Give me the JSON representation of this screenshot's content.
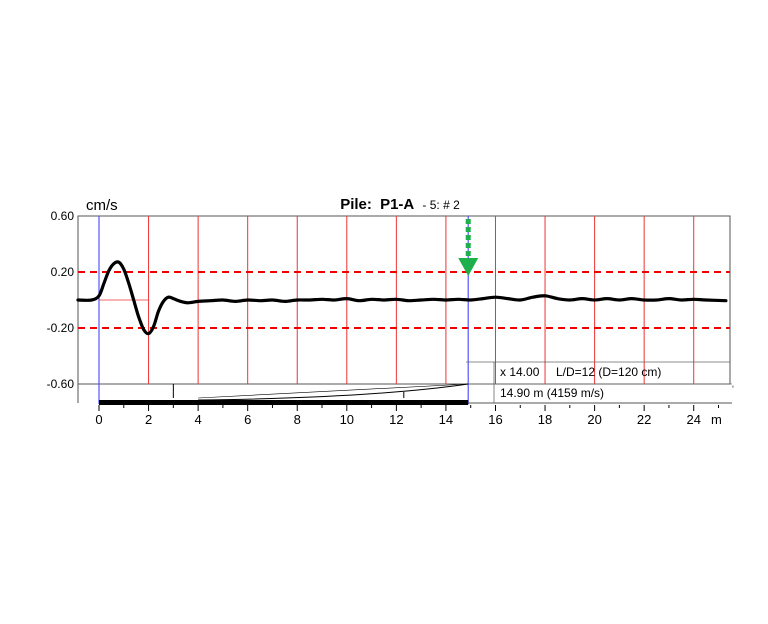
{
  "chart_data": {
    "type": "line",
    "title": {
      "prefix": "Pile:",
      "name": "P1-A",
      "suffix": "- 5: # 2"
    },
    "y_unit": "cm/s",
    "x_unit": "m",
    "ylim": [
      -0.6,
      0.6
    ],
    "xlim": [
      -0.9,
      25.3
    ],
    "y_ticks": [
      0.6,
      0.2,
      -0.2,
      -0.6
    ],
    "y_tick_labels": [
      "0.60",
      "0.20",
      "-0.20",
      "-0.60"
    ],
    "x_ticks": [
      0,
      2,
      4,
      6,
      8,
      10,
      12,
      14,
      16,
      18,
      20,
      22,
      24
    ],
    "x_tick_labels": [
      "0",
      "2",
      "4",
      "6",
      "8",
      "10",
      "12",
      "14",
      "16",
      "18",
      "20",
      "22",
      "24"
    ],
    "threshold_lines": [
      0.2,
      -0.2
    ],
    "marker_lines_x": [
      0,
      14.9
    ],
    "toe_arrow_x": 14.9,
    "annotations": {
      "amplification": "x 14.00",
      "ld_ratio": "L/D=12 (D=120 cm)",
      "pile_length": "14.90 m (4159 m/s)"
    },
    "pile_length_m": 14.9,
    "wave_speed_m_s": 4159,
    "amplification_factor": 14.0,
    "series": [
      {
        "x": [
          -0.9,
          -0.3,
          0.0,
          0.2,
          0.4,
          0.6,
          0.8,
          1.0,
          1.2,
          1.4,
          1.6,
          1.8,
          2.0,
          2.2,
          2.4,
          2.6,
          2.8,
          3.0,
          3.3,
          3.6,
          4.0,
          4.5,
          5.0,
          5.5,
          6.0,
          6.5,
          7.0,
          7.5,
          8.0,
          8.5,
          9.0,
          9.5,
          10.0,
          10.5,
          11.0,
          11.5,
          12.0,
          12.5,
          13.0,
          13.5,
          14.0,
          14.5,
          15.0,
          15.5,
          16.0,
          16.5,
          17.0,
          17.5,
          18.0,
          18.5,
          19.0,
          19.5,
          20.0,
          20.5,
          21.0,
          21.5,
          22.0,
          22.5,
          23.0,
          23.5,
          24.0,
          24.5,
          25.3
        ],
        "y": [
          0.0,
          0.0,
          0.03,
          0.12,
          0.21,
          0.26,
          0.27,
          0.22,
          0.12,
          0.0,
          -0.12,
          -0.21,
          -0.24,
          -0.19,
          -0.08,
          -0.01,
          0.02,
          0.01,
          -0.01,
          -0.02,
          -0.01,
          -0.005,
          0.0,
          -0.01,
          0.0,
          -0.005,
          0.0,
          -0.01,
          0.0,
          0.0,
          0.005,
          0.0,
          0.01,
          -0.005,
          0.005,
          0.0,
          0.005,
          -0.005,
          0.0,
          0.005,
          0.0,
          0.005,
          0.0,
          0.01,
          0.02,
          0.01,
          0.0,
          0.02,
          0.03,
          0.01,
          0.0,
          0.01,
          0.0,
          0.01,
          0.0,
          0.01,
          0.0,
          0.0,
          0.01,
          0.0,
          0.005,
          0.0,
          -0.005
        ]
      }
    ],
    "grid": true
  }
}
